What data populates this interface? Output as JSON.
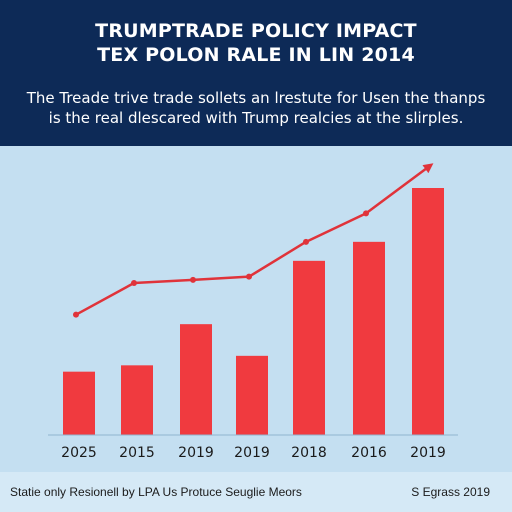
{
  "header": {
    "title_line1": "TRUMPTRADE POLICY IMPACT",
    "title_line2": "TEX POLON RALE IN LIN 2014",
    "subtitle_line1": "The Treade trive trade sollets an lrestute for Usen the thanps",
    "subtitle_line2": "is the real dlescared with Trump realcies at the slirples."
  },
  "footer": {
    "source": "Statie only Resionell by LPA Us Protuce Seuglie Meors",
    "date": "S Egrass 2019"
  },
  "colors": {
    "header_bg": "#0d2a57",
    "plot_bg": "#c4dff1",
    "bar": "#f03a3f",
    "line": "#e0333a"
  },
  "chart_data": {
    "type": "bar",
    "title": "TRUMPTRADE POLICY IMPACT",
    "categories": [
      "2025",
      "2015",
      "2019",
      "2019",
      "2018",
      "2016",
      "2019"
    ],
    "series": [
      {
        "values": [
          20,
          22,
          35,
          25,
          55,
          61,
          78
        ]
      },
      {
        "type": "line",
        "values": [
          38,
          48,
          49,
          50,
          61,
          70,
          84
        ],
        "end_arrow": true
      }
    ],
    "ylim": [
      0,
      90
    ],
    "grid": false,
    "legend": "none"
  }
}
